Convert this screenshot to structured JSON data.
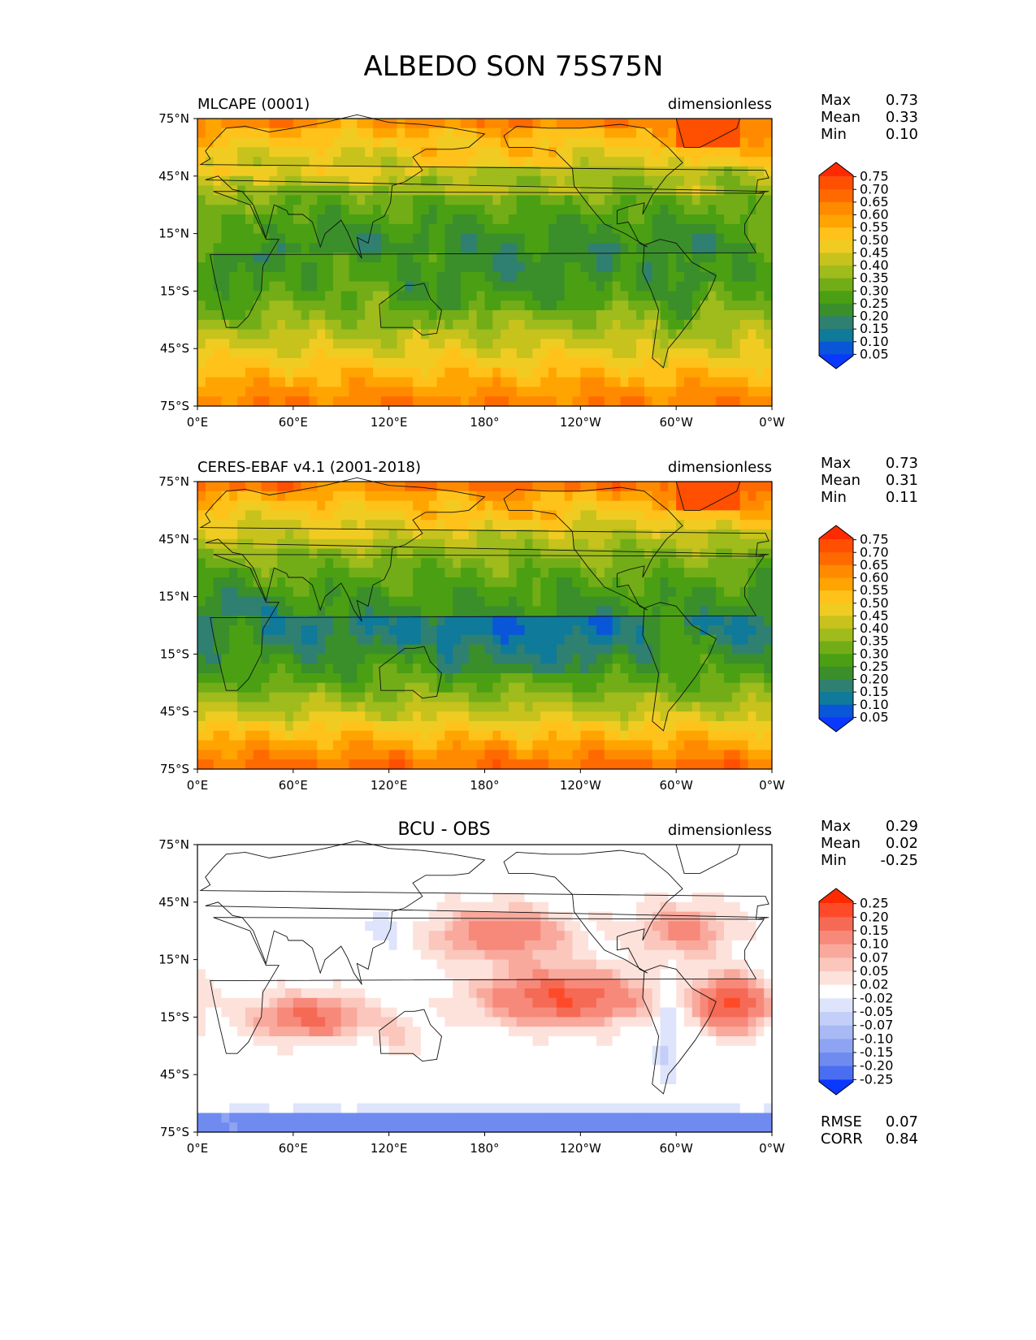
{
  "title": "ALBEDO SON 75S75N",
  "chart_data": [
    {
      "type": "heatmap",
      "title": "MLCAPE (0001)",
      "units": "dimensionless",
      "title_position": "left",
      "x_ticks": [
        "0°E",
        "60°E",
        "120°E",
        "180°",
        "120°W",
        "60°W",
        "0°W"
      ],
      "y_ticks": [
        "75°N",
        "45°N",
        "15°N",
        "15°S",
        "45°S",
        "75°S"
      ],
      "xlim": [
        0,
        360
      ],
      "ylim": [
        -75,
        75
      ],
      "stats": [
        {
          "label": "Max",
          "value": "0.73"
        },
        {
          "label": "Mean",
          "value": "0.33"
        },
        {
          "label": "Min",
          "value": "0.10"
        }
      ],
      "colorbar": {
        "levels": [
          "0.75",
          "0.70",
          "0.65",
          "0.60",
          "0.55",
          "0.50",
          "0.45",
          "0.40",
          "0.35",
          "0.30",
          "0.25",
          "0.20",
          "0.15",
          "0.10",
          "0.05"
        ],
        "colors": [
          "#ff2a00",
          "#ff4f00",
          "#ff6a00",
          "#ff8a00",
          "#ffa400",
          "#ffc21a",
          "#f0cc22",
          "#c8c21c",
          "#9fbb1c",
          "#72ad18",
          "#4aa012",
          "#3a8f2a",
          "#2f8070",
          "#0f7a9a",
          "#0a56d8",
          "#0a38ff"
        ],
        "extend": "both"
      },
      "fields": {
        "ocean": [
          0.26,
          0.3,
          0.36,
          0.45,
          0.55,
          0.65
        ],
        "land": [
          0.2,
          0.24,
          0.3,
          0.38,
          0.48,
          0.6
        ]
      }
    },
    {
      "type": "heatmap",
      "title": "CERES-EBAF v4.1 (2001-2018)",
      "units": "dimensionless",
      "title_position": "left",
      "x_ticks": [
        "0°E",
        "60°E",
        "120°E",
        "180°",
        "120°W",
        "60°W",
        "0°W"
      ],
      "y_ticks": [
        "75°N",
        "45°N",
        "15°N",
        "15°S",
        "45°S",
        "75°S"
      ],
      "xlim": [
        0,
        360
      ],
      "ylim": [
        -75,
        75
      ],
      "stats": [
        {
          "label": "Max",
          "value": "0.73"
        },
        {
          "label": "Mean",
          "value": "0.31"
        },
        {
          "label": "Min",
          "value": "0.11"
        }
      ],
      "colorbar": {
        "levels": [
          "0.75",
          "0.70",
          "0.65",
          "0.60",
          "0.55",
          "0.50",
          "0.45",
          "0.40",
          "0.35",
          "0.30",
          "0.25",
          "0.20",
          "0.15",
          "0.10",
          "0.05"
        ],
        "colors": [
          "#ff2a00",
          "#ff4f00",
          "#ff6a00",
          "#ff8a00",
          "#ffa400",
          "#ffc21a",
          "#f0cc22",
          "#c8c21c",
          "#9fbb1c",
          "#72ad18",
          "#4aa012",
          "#3a8f2a",
          "#2f8070",
          "#0f7a9a",
          "#0a56d8",
          "#0a38ff"
        ],
        "extend": "both"
      },
      "fields": {
        "ocean": [
          0.15,
          0.22,
          0.3,
          0.42,
          0.56,
          0.68
        ],
        "land": [
          0.22,
          0.26,
          0.32,
          0.4,
          0.5,
          0.62
        ]
      }
    },
    {
      "type": "heatmap",
      "title": "BCU - OBS",
      "units": "dimensionless",
      "title_position": "center",
      "x_ticks": [
        "0°E",
        "60°E",
        "120°E",
        "180°",
        "120°W",
        "60°W",
        "0°W"
      ],
      "y_ticks": [
        "75°N",
        "45°N",
        "15°N",
        "15°S",
        "45°S",
        "75°S"
      ],
      "xlim": [
        0,
        360
      ],
      "ylim": [
        -75,
        75
      ],
      "stats": [
        {
          "label": "Max",
          "value": "0.29"
        },
        {
          "label": "Mean",
          "value": "0.02"
        },
        {
          "label": "Min",
          "value": "-0.25"
        }
      ],
      "colorbar": {
        "levels": [
          "0.25",
          "0.20",
          "0.15",
          "0.10",
          "0.07",
          "0.05",
          "0.02",
          "-0.02",
          "-0.05",
          "-0.07",
          "-0.10",
          "-0.15",
          "-0.20",
          "-0.25"
        ],
        "colors": [
          "#ff2a00",
          "#ff4a2a",
          "#f56a55",
          "#f7897a",
          "#f9a89c",
          "#fbc6bc",
          "#fde2dc",
          "#ffffff",
          "#dde4fb",
          "#c3cff8",
          "#a8b9f5",
          "#8ea4f2",
          "#6f8bf0",
          "#4a6ef2",
          "#0a38ff"
        ],
        "extend": "both"
      },
      "extra_stats": [
        {
          "label": "RMSE",
          "value": "0.07"
        },
        {
          "label": "CORR",
          "value": "0.84"
        }
      ]
    }
  ]
}
